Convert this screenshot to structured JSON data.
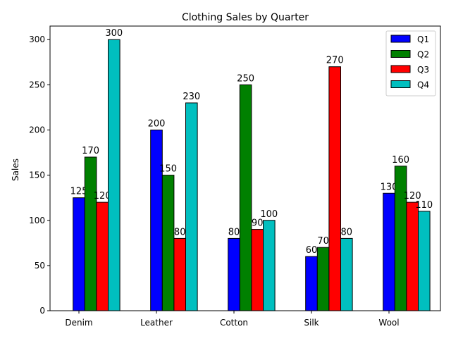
{
  "chart_data": {
    "type": "bar",
    "title": "Clothing Sales by Quarter",
    "xlabel": "",
    "ylabel": "Sales",
    "categories": [
      "Denim",
      "Leather",
      "Cotton",
      "Silk",
      "Wool"
    ],
    "series": [
      {
        "name": "Q1",
        "color": "#0000ff",
        "values": [
          125,
          200,
          80,
          60,
          130
        ]
      },
      {
        "name": "Q2",
        "color": "#008000",
        "values": [
          170,
          150,
          250,
          70,
          160
        ]
      },
      {
        "name": "Q3",
        "color": "#ff0000",
        "values": [
          120,
          80,
          90,
          270,
          120
        ]
      },
      {
        "name": "Q4",
        "color": "#00bfbf",
        "values": [
          300,
          230,
          100,
          80,
          110
        ]
      }
    ],
    "ylim": [
      0,
      315
    ],
    "yticks": [
      0,
      50,
      100,
      150,
      200,
      250,
      300
    ],
    "grid": false,
    "legend_position": "top-right"
  }
}
